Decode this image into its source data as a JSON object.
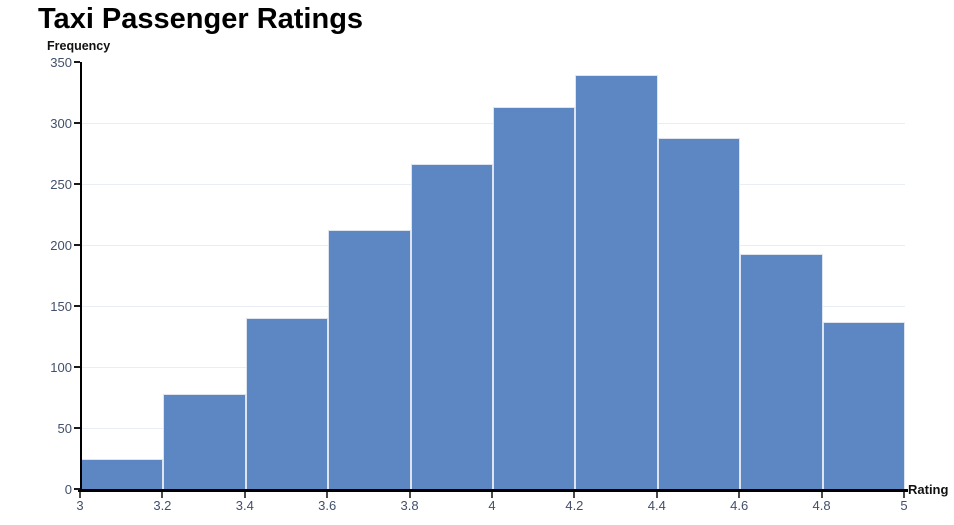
{
  "chart_data": {
    "type": "bar",
    "subtype": "histogram",
    "title": "Taxi Passenger Ratings",
    "xlabel": "Rating",
    "ylabel": "Frequency",
    "bin_edges": [
      3,
      3.2,
      3.4,
      3.6,
      3.8,
      4,
      4.2,
      4.4,
      4.6,
      4.8,
      5
    ],
    "values": [
      25,
      78,
      140,
      212,
      266,
      313,
      339,
      288,
      193,
      137
    ],
    "x_tick_labels": [
      "3",
      "3.2",
      "3.4",
      "3.6",
      "3.8",
      "4",
      "4.2",
      "4.4",
      "4.6",
      "4.8",
      "5"
    ],
    "y_tick_labels": [
      "0",
      "50",
      "100",
      "150",
      "200",
      "250",
      "300",
      "350"
    ],
    "y_tick_values": [
      0,
      50,
      100,
      150,
      200,
      250,
      300,
      350
    ],
    "xlim": [
      3,
      5
    ],
    "ylim": [
      0,
      350
    ],
    "grid": "horizontal",
    "legend": "none",
    "colors": {
      "bar_fill": "#5c87c3",
      "bar_border": "#dde4f0",
      "axis": "#000000",
      "gridline": "#e9eef6",
      "tick_label": "#41506b",
      "title": "#000000"
    }
  }
}
